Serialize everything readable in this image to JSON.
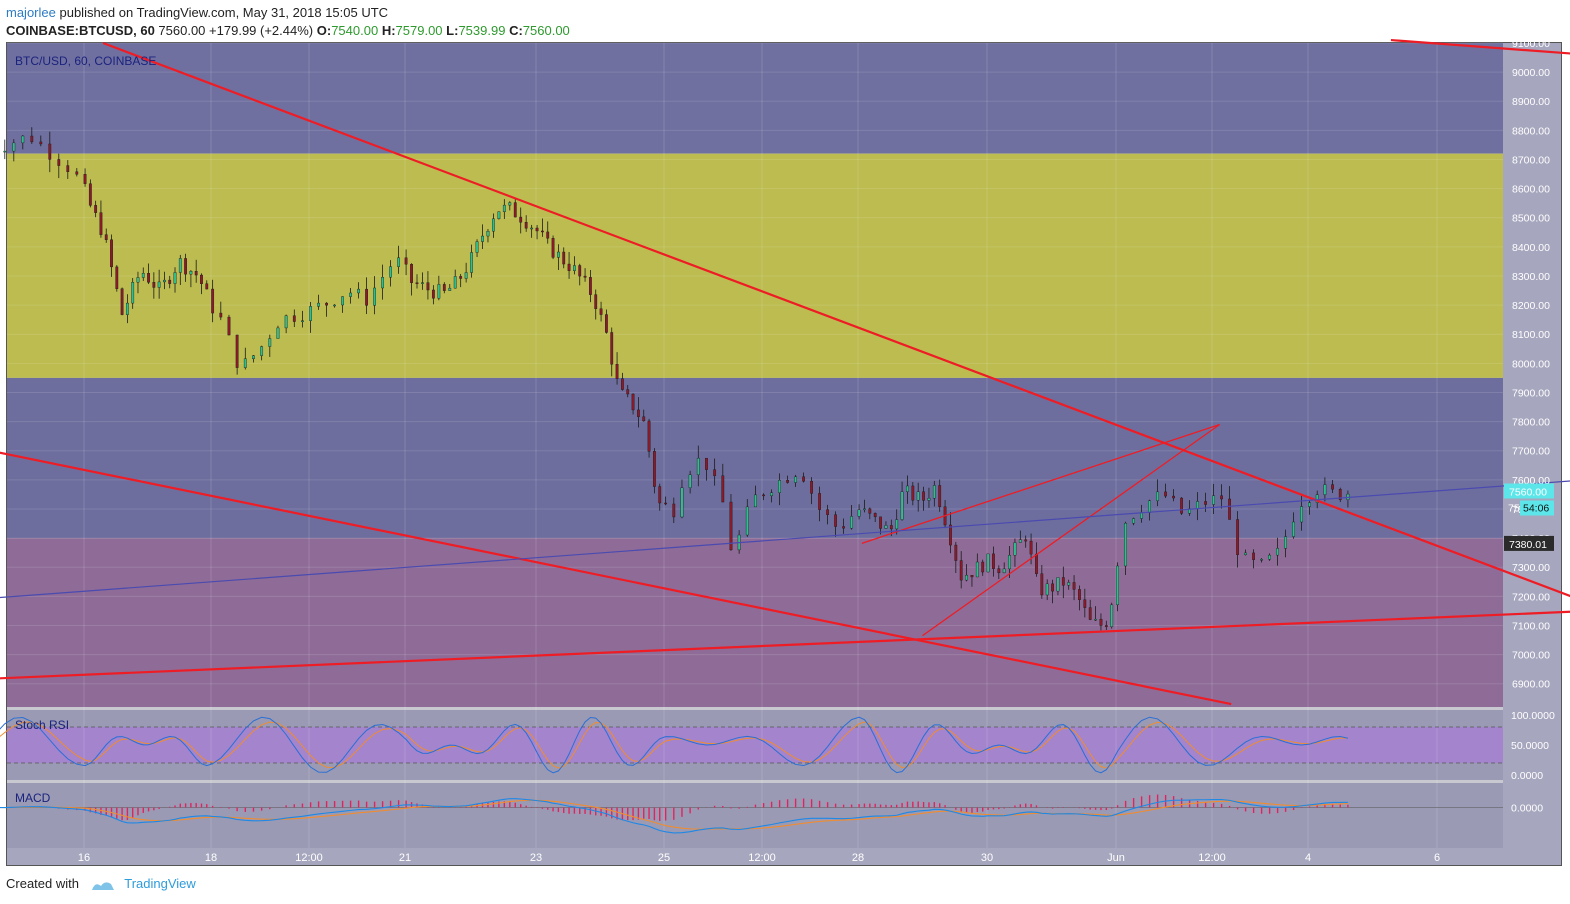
{
  "header": {
    "author": "majorlee",
    "published_text": "published on TradingView.com, May 31, 2018 15:05 UTC",
    "symbol": "COINBASE:BTCUSD, 60",
    "last": "7560.00",
    "change": "+179.99 (+2.44%)",
    "o_label": "O:",
    "o_value": "7540.00",
    "h_label": "H:",
    "h_value": "7579.00",
    "l_label": "L:",
    "l_value": "7539.99",
    "c_label": "C:",
    "c_value": "7560.00"
  },
  "footer": {
    "created_with": "Created with",
    "brand": "TradingView"
  },
  "colors": {
    "zone_upper": "#7070a0",
    "zone_yellow": "#bcbc50",
    "zone_middle": "#6e6e9e",
    "zone_lower": "#8e6c97",
    "panel_bg": "#9a9ab4",
    "stoch_band": "#a57cd6",
    "trend_red": "#ee1c25",
    "trend_blue": "#4a4ab0",
    "candle_up": "#2fbf8c",
    "candle_down": "#8b1a2a",
    "price_tag": "#5de6ea",
    "axis_text": "#ffffff"
  },
  "chart_data": {
    "type": "candlestick",
    "symbol_label": "BTC/USD, 60, COINBASE",
    "price_axis": {
      "ylim": [
        6820,
        9100
      ],
      "ticks": [
        "9100.00",
        "9000.00",
        "8900.00",
        "8800.00",
        "8700.00",
        "8600.00",
        "8500.00",
        "8400.00",
        "8300.00",
        "8200.00",
        "8100.00",
        "8000.00",
        "7900.00",
        "7800.00",
        "7700.00",
        "7600.00",
        "7500.00",
        "7400.00",
        "7300.00",
        "7200.00",
        "7100.00",
        "7000.00",
        "6900.00"
      ],
      "last_price_tag": "7560.00",
      "countdown_tag": "54:06",
      "level_tag": "7380.01",
      "partial_tag": "75"
    },
    "time_axis": {
      "labels": [
        "16",
        "18",
        "12:00",
        "21",
        "23",
        "25",
        "12:00",
        "28",
        "30",
        "Jun",
        "12:00",
        "4",
        "6"
      ]
    },
    "zones": [
      {
        "from": 8720,
        "to": 9100,
        "color_key": "zone_upper"
      },
      {
        "from": 7950,
        "to": 8720,
        "color_key": "zone_yellow"
      },
      {
        "from": 7400,
        "to": 7950,
        "color_key": "zone_middle"
      },
      {
        "from": 6820,
        "to": 7400,
        "color_key": "zone_lower"
      }
    ],
    "trendlines": [
      {
        "from": [
          0.15,
          9100
        ],
        "to": [
          9.75,
          7130
        ],
        "color_key": "trend_red"
      },
      {
        "from": [
          -0.5,
          7710
        ],
        "to": [
          7.6,
          6830
        ],
        "color_key": "trend_red"
      },
      {
        "from": [
          -0.5,
          6915
        ],
        "to": [
          9.75,
          7155
        ],
        "color_key": "trend_red"
      },
      {
        "from": [
          8.45,
          9110
        ],
        "to": [
          9.75,
          9050
        ],
        "color_key": "trend_red"
      },
      {
        "from": [
          5.03,
          7382
        ],
        "to": [
          7.54,
          7790
        ],
        "color_key": "trend_red"
      },
      {
        "from": [
          5.5,
          7065
        ],
        "to": [
          7.54,
          7790
        ],
        "color_key": "trend_red"
      },
      {
        "from": [
          -0.5,
          7190
        ],
        "to": [
          9.75,
          7610
        ],
        "color_key": "trend_blue"
      }
    ],
    "price_keypoints": [
      [
        -0.5,
        8720
      ],
      [
        -0.25,
        8780
      ],
      [
        -0.05,
        8660
      ],
      [
        0.05,
        8540
      ],
      [
        0.15,
        8450
      ],
      [
        0.3,
        8170
      ],
      [
        0.45,
        8320
      ],
      [
        0.6,
        8250
      ],
      [
        0.75,
        8350
      ],
      [
        0.9,
        8300
      ],
      [
        1.05,
        8150
      ],
      [
        1.15,
        7980
      ],
      [
        1.25,
        8050
      ],
      [
        1.35,
        8150
      ],
      [
        1.5,
        8180
      ],
      [
        1.6,
        8210
      ],
      [
        1.7,
        8250
      ],
      [
        1.8,
        8220
      ],
      [
        1.95,
        8360
      ],
      [
        2.05,
        8280
      ],
      [
        2.2,
        8250
      ],
      [
        2.3,
        8240
      ],
      [
        2.4,
        8280
      ],
      [
        2.5,
        8350
      ],
      [
        2.6,
        8450
      ],
      [
        2.7,
        8530
      ],
      [
        2.8,
        8530
      ],
      [
        2.9,
        8500
      ],
      [
        3.0,
        8460
      ],
      [
        3.1,
        8400
      ],
      [
        3.2,
        8360
      ],
      [
        3.3,
        8320
      ],
      [
        3.45,
        8230
      ],
      [
        3.55,
        8100
      ],
      [
        3.65,
        7900
      ],
      [
        3.75,
        7860
      ],
      [
        3.85,
        7790
      ],
      [
        3.95,
        7520
      ],
      [
        4.05,
        7500
      ],
      [
        4.1,
        7620
      ],
      [
        4.2,
        7680
      ],
      [
        4.3,
        7520
      ],
      [
        4.35,
        7340
      ],
      [
        4.45,
        7530
      ],
      [
        4.55,
        7580
      ],
      [
        4.7,
        7640
      ],
      [
        4.8,
        7500
      ],
      [
        4.9,
        7430
      ],
      [
        5.0,
        7500
      ],
      [
        5.1,
        7470
      ],
      [
        5.25,
        7420
      ],
      [
        5.35,
        7560
      ],
      [
        5.5,
        7530
      ],
      [
        5.6,
        7580
      ],
      [
        5.7,
        7430
      ],
      [
        5.8,
        7270
      ],
      [
        5.9,
        7290
      ],
      [
        6.0,
        7320
      ],
      [
        6.1,
        7300
      ],
      [
        6.2,
        7350
      ],
      [
        6.3,
        7410
      ],
      [
        6.4,
        7220
      ],
      [
        6.5,
        7230
      ],
      [
        6.6,
        7250
      ],
      [
        6.7,
        7200
      ],
      [
        6.8,
        7110
      ],
      [
        6.9,
        7100
      ],
      [
        6.95,
        7130
      ],
      [
        7.05,
        7460
      ],
      [
        7.15,
        7520
      ],
      [
        7.25,
        7550
      ],
      [
        7.35,
        7480
      ],
      [
        7.45,
        7520
      ],
      [
        7.55,
        7540
      ],
      [
        7.65,
        7330
      ],
      [
        7.75,
        7300
      ],
      [
        7.85,
        7350
      ],
      [
        7.95,
        7520
      ],
      [
        8.05,
        7570
      ],
      [
        8.15,
        7550
      ],
      [
        8.25,
        7560
      ]
    ],
    "indicators": [
      {
        "name": "Stoch RSI",
        "levels": [
          "100.0000",
          "50.0000",
          "0.0000"
        ],
        "band": [
          20,
          80
        ]
      },
      {
        "name": "MACD",
        "levels": [
          "0.0000"
        ]
      }
    ]
  }
}
